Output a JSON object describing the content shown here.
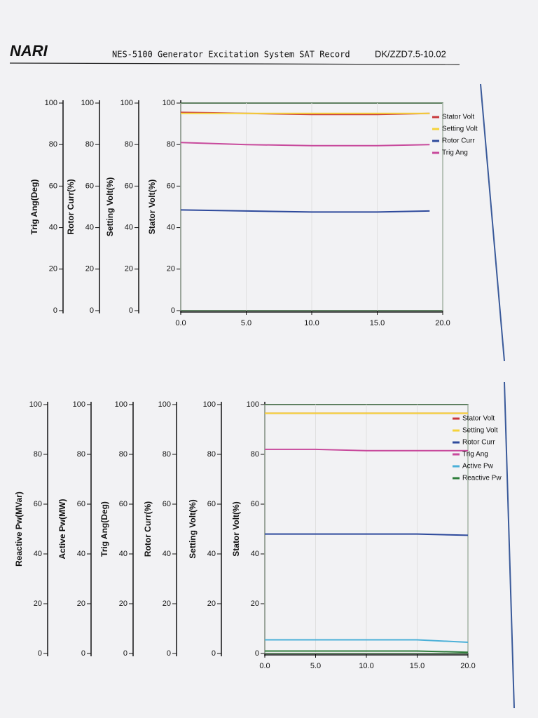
{
  "header": {
    "logo": "NARI",
    "title": "NES-5100 Generator Excitation System SAT Record",
    "code": "DK/ZZD7.5-10.02"
  },
  "chart_data": [
    {
      "type": "line",
      "y_axis_labels": [
        "Trig Ang(Deg)",
        "Rotor Curr(%)",
        "Setting Volt(%)",
        "Stator Volt(%)"
      ],
      "ylim": [
        0,
        100
      ],
      "yticks": [
        0,
        20,
        40,
        60,
        80,
        100
      ],
      "xlim": [
        0,
        20
      ],
      "xticks": [
        {
          "value": 0,
          "label": "0.0"
        },
        {
          "value": 5,
          "label": "5.0"
        },
        {
          "value": 10,
          "label": "10.0"
        },
        {
          "value": 15,
          "label": "15.0"
        },
        {
          "value": 20,
          "label": "20.0"
        }
      ],
      "x": [
        0,
        5,
        10,
        15,
        19
      ],
      "series": [
        {
          "name": "Stator Volt",
          "color": "#c8383c",
          "values": [
            95.5,
            95,
            94.5,
            94.5,
            95
          ]
        },
        {
          "name": "Setting Volt",
          "color": "#f5d33a",
          "values": [
            95,
            95,
            95,
            95,
            95
          ]
        },
        {
          "name": "Rotor Curr",
          "color": "#2e4a9c",
          "values": [
            48.5,
            48,
            47.5,
            47.5,
            48
          ]
        },
        {
          "name": "Trig Ang",
          "color": "#c84a9c",
          "values": [
            81,
            80,
            79.5,
            79.5,
            80
          ]
        }
      ]
    },
    {
      "type": "line",
      "y_axis_labels": [
        "Reactive Pw(MVar)",
        "Active Pw(MW)",
        "Trig Ang(Deg)",
        "Rotor Curr(%)",
        "Setting Volt(%)",
        "Stator Volt(%)"
      ],
      "ylim": [
        0,
        100
      ],
      "yticks": [
        0,
        20,
        40,
        60,
        80,
        100
      ],
      "xlim": [
        0,
        20
      ],
      "xticks": [
        {
          "value": 0,
          "label": "0.0"
        },
        {
          "value": 5,
          "label": "5.0"
        },
        {
          "value": 10,
          "label": "10.0"
        },
        {
          "value": 15,
          "label": "15.0"
        },
        {
          "value": 20,
          "label": "20.0"
        }
      ],
      "x": [
        0,
        5,
        10,
        15,
        20
      ],
      "series": [
        {
          "name": "Stator Volt",
          "color": "#c8383c",
          "values": [
            96.5,
            96.5,
            96.5,
            96.5,
            96.5
          ]
        },
        {
          "name": "Setting Volt",
          "color": "#f5d33a",
          "values": [
            96.5,
            96.5,
            96.5,
            96.5,
            96.5
          ]
        },
        {
          "name": "Rotor Curr",
          "color": "#2e4a9c",
          "values": [
            48,
            48,
            48,
            48,
            47.5
          ]
        },
        {
          "name": "Trig Ang",
          "color": "#c84a9c",
          "values": [
            82,
            82,
            81.5,
            81.5,
            81.5
          ]
        },
        {
          "name": "Active Pw",
          "color": "#4bb0d8",
          "values": [
            5.5,
            5.5,
            5.5,
            5.5,
            4.5
          ]
        },
        {
          "name": "Reactive Pw",
          "color": "#2e7d3a",
          "values": [
            1,
            1,
            1,
            1,
            0.5
          ]
        }
      ]
    }
  ]
}
